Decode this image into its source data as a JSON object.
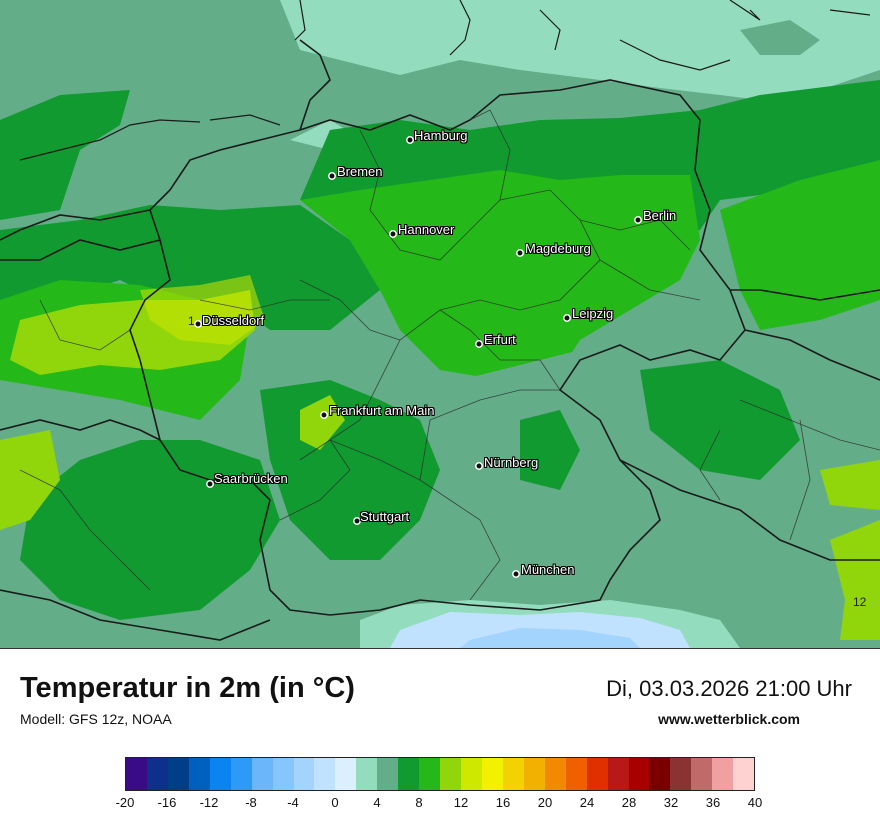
{
  "map": {
    "cities": [
      {
        "name": "Hamburg",
        "dot": [
          410,
          140
        ],
        "label": [
          414,
          128
        ]
      },
      {
        "name": "Bremen",
        "dot": [
          332,
          176
        ],
        "label": [
          337,
          164
        ]
      },
      {
        "name": "Hannover",
        "dot": [
          393,
          234
        ],
        "label": [
          398,
          222
        ]
      },
      {
        "name": "Berlin",
        "dot": [
          638,
          220
        ],
        "label": [
          643,
          208
        ]
      },
      {
        "name": "Magdeburg",
        "dot": [
          520,
          253
        ],
        "label": [
          525,
          241
        ]
      },
      {
        "name": "Düsseldorf",
        "dot": [
          198,
          324
        ],
        "label": [
          202,
          313
        ]
      },
      {
        "name": "Leipzig",
        "dot": [
          567,
          318
        ],
        "label": [
          572,
          306
        ]
      },
      {
        "name": "Erfurt",
        "dot": [
          479,
          344
        ],
        "label": [
          484,
          332
        ]
      },
      {
        "name": "Frankfurt am Main",
        "dot": [
          324,
          415
        ],
        "label": [
          329,
          403
        ]
      },
      {
        "name": "Nürnberg",
        "dot": [
          479,
          466
        ],
        "label": [
          484,
          455
        ]
      },
      {
        "name": "Saarbrücken",
        "dot": [
          210,
          484
        ],
        "label": [
          214,
          471
        ]
      },
      {
        "name": "Stuttgart",
        "dot": [
          357,
          521
        ],
        "label": [
          360,
          509
        ]
      },
      {
        "name": "München",
        "dot": [
          516,
          574
        ],
        "label": [
          521,
          562
        ]
      }
    ],
    "isotherm_labels": [
      {
        "text": "1",
        "pos": [
          188,
          314
        ]
      },
      {
        "text": "12",
        "pos": [
          853,
          595
        ]
      }
    ]
  },
  "header": {
    "title": "Temperatur in 2m (in °C)",
    "model": "Modell: GFS 12z, NOAA",
    "datetime": "Di, 03.03.2026 21:00 Uhr",
    "site": "www.wetterblick.com"
  },
  "legend": {
    "colors": [
      "#3a0b86",
      "#0e2f8c",
      "#003f88",
      "#0060c0",
      "#0a84f0",
      "#2c9bf8",
      "#6bb6fb",
      "#86c5fd",
      "#a3d4fd",
      "#c0e2fe",
      "#dcefff",
      "#93dcbe",
      "#63ad89",
      "#109a30",
      "#24b818",
      "#90d60a",
      "#cfe800",
      "#f2f200",
      "#f2d200",
      "#f2b000",
      "#f28a00",
      "#f06000",
      "#e03000",
      "#b81818",
      "#a80000",
      "#7a0000",
      "#8b3333",
      "#c06a6a",
      "#f0a0a0",
      "#ffd2d2"
    ],
    "ticks": [
      "-20",
      "-16",
      "-12",
      "-8",
      "-4",
      "0",
      "4",
      "8",
      "12",
      "16",
      "20",
      "24",
      "28",
      "32",
      "36",
      "40"
    ]
  }
}
